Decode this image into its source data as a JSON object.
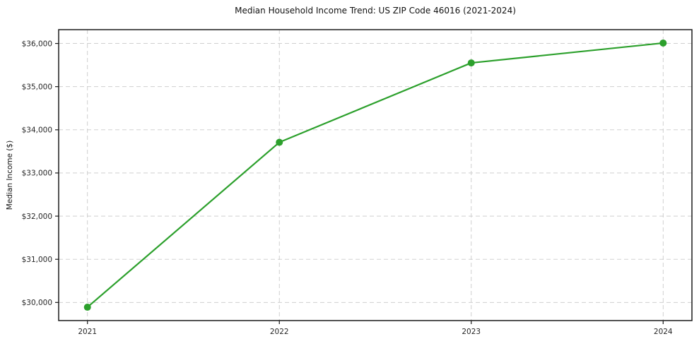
{
  "chart_data": {
    "type": "line",
    "title": "Median Household Income Trend: US ZIP Code 46016 (2021-2024)",
    "xlabel": "",
    "ylabel": "Median Income ($)",
    "x": [
      2021,
      2022,
      2023,
      2024
    ],
    "series": [
      {
        "name": "Median household income",
        "values": [
          29890,
          33710,
          35550,
          36010
        ]
      }
    ],
    "xticks": {
      "values": [
        2021,
        2022,
        2023,
        2024
      ],
      "labels": [
        "2021",
        "2022",
        "2023",
        "2024"
      ]
    },
    "yticks": {
      "values": [
        30000,
        31000,
        32000,
        33000,
        34000,
        35000,
        36000
      ],
      "labels": [
        "$30,000",
        "$31,000",
        "$32,000",
        "$33,000",
        "$34,000",
        "$35,000",
        "$36,000"
      ]
    },
    "xlim": [
      2020.85,
      2024.15
    ],
    "ylim": [
      29580,
      36320
    ],
    "grid": true,
    "grid_style": "dashed",
    "legend_position": "none",
    "colors": {
      "line": "#2ca02c",
      "marker": "#2ca02c",
      "grid": "#c9c9c9",
      "spine": "#1a1a1a",
      "background": "#ffffff",
      "text": "#262626"
    }
  }
}
